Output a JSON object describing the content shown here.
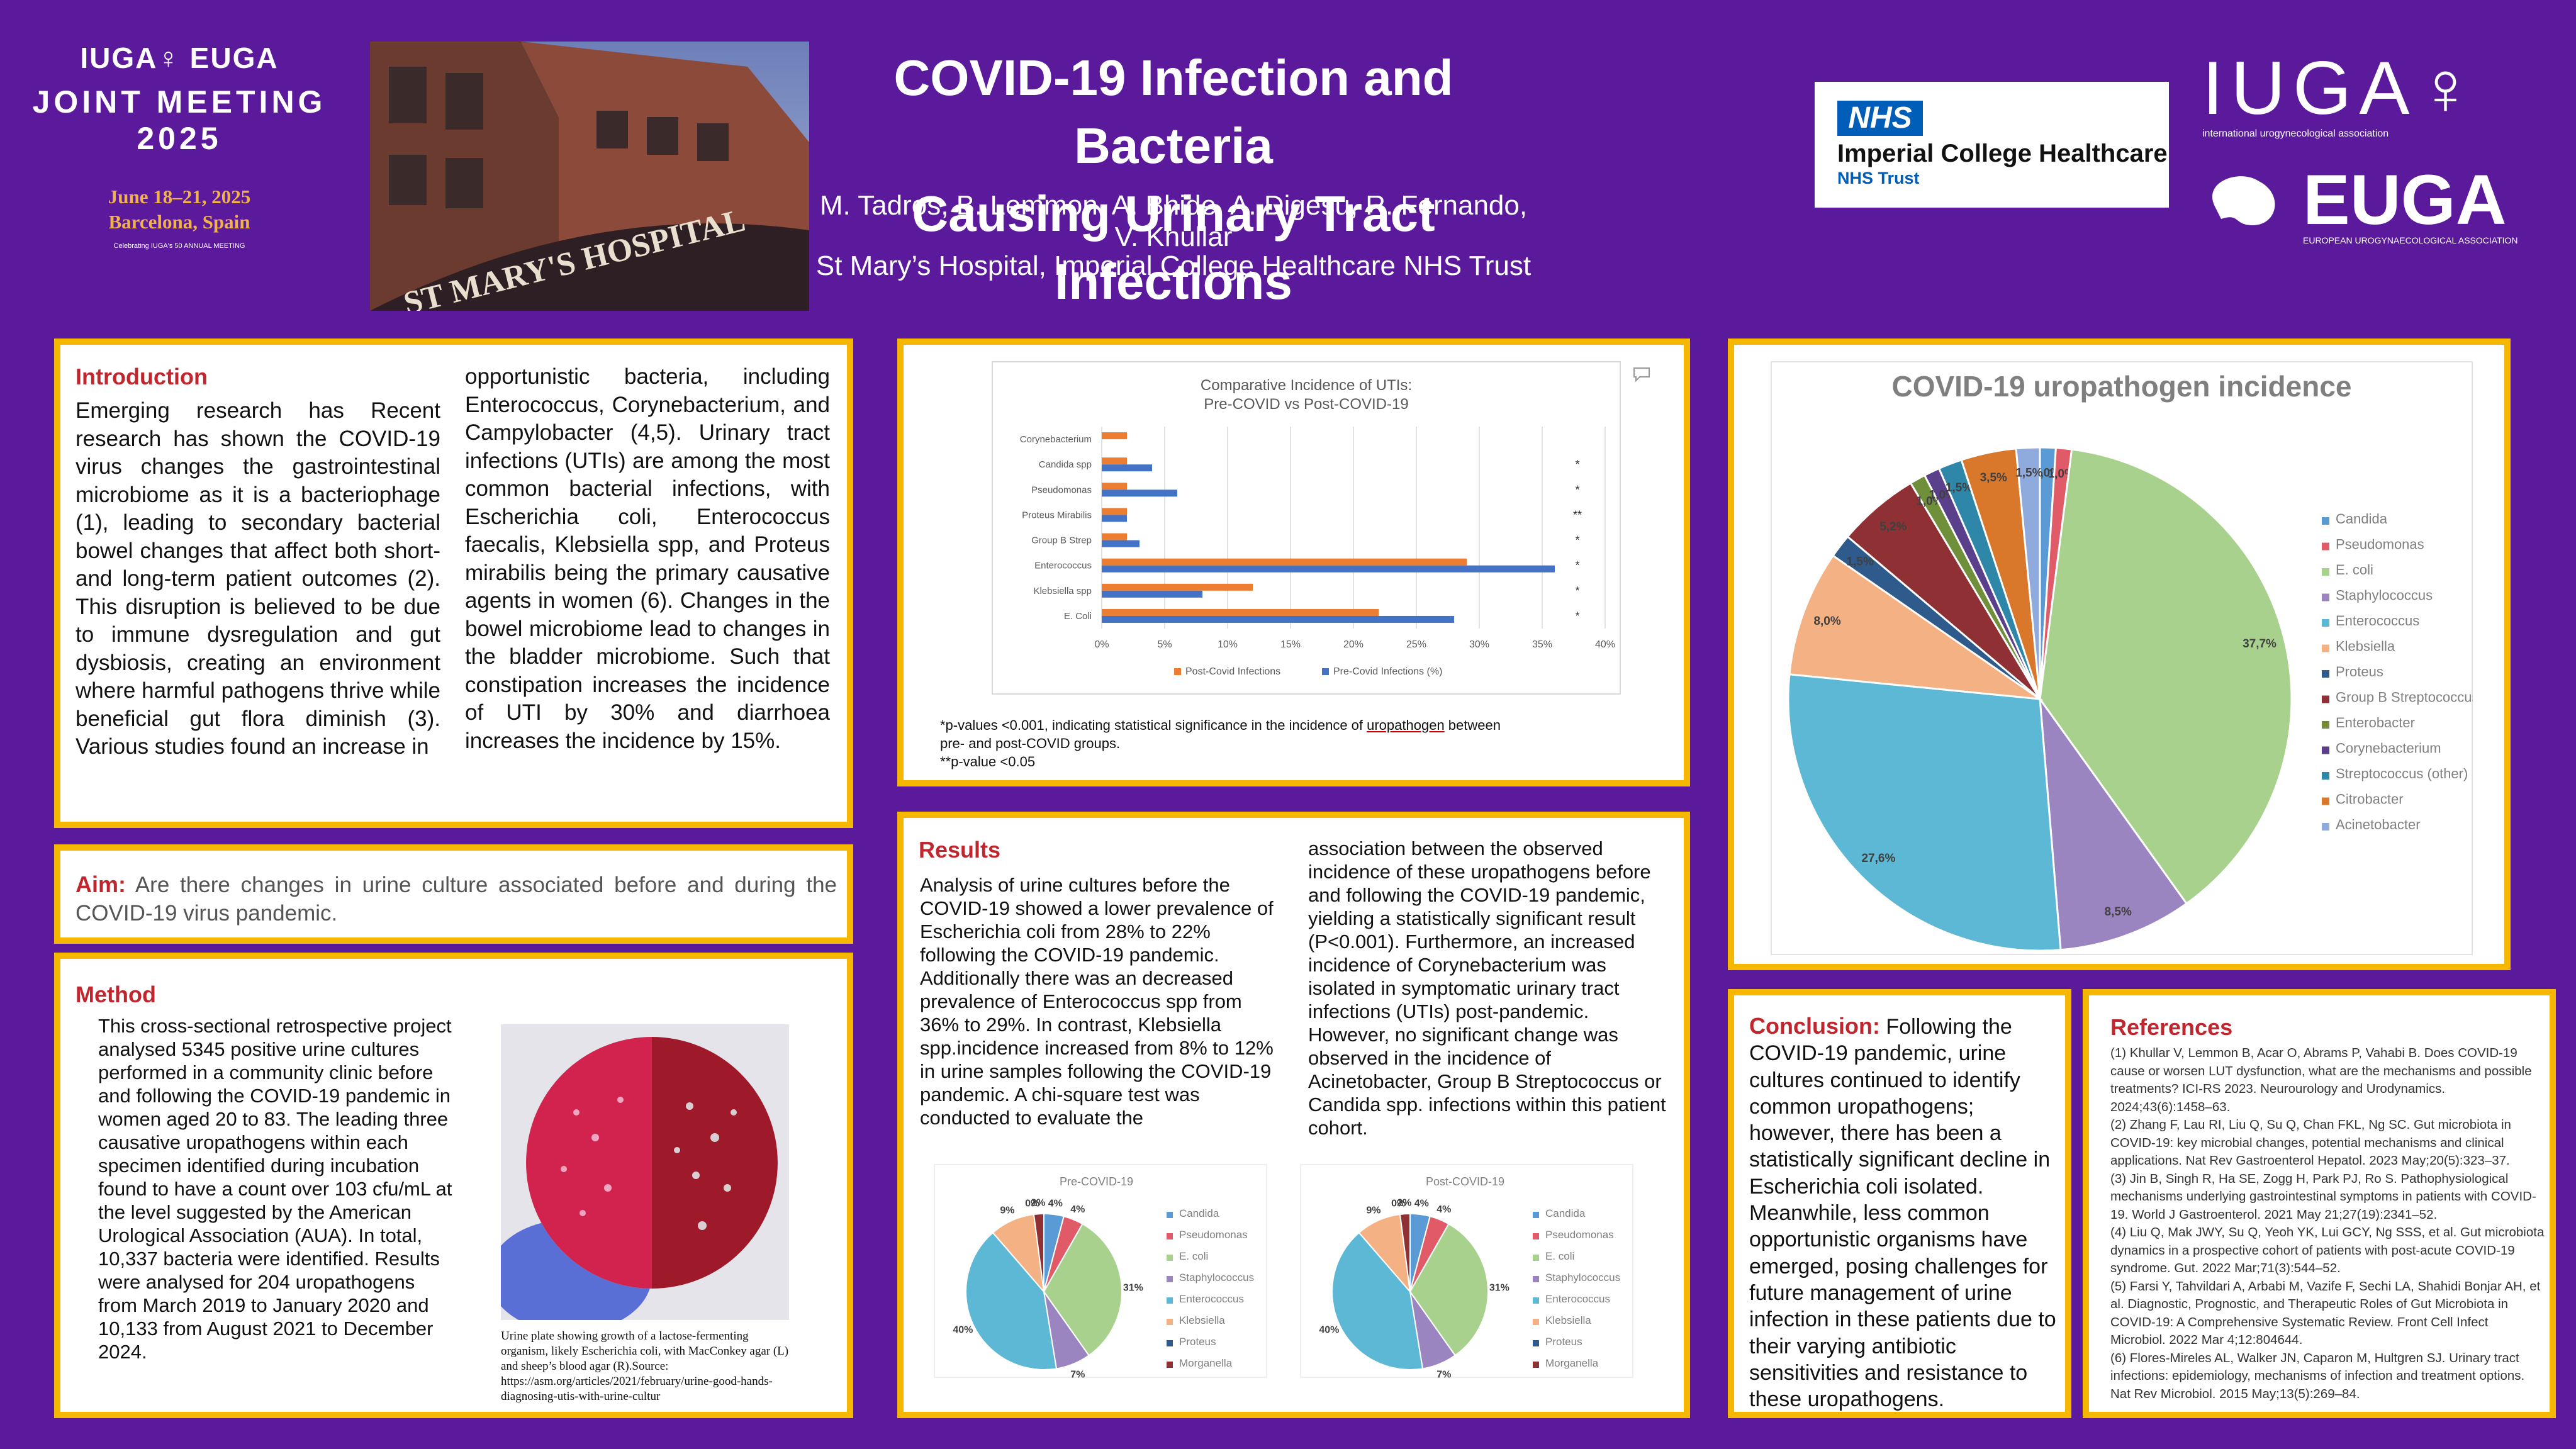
{
  "header": {
    "meeting_logo_line1": "IUGA♀ EUGA",
    "meeting_logo_line2": "JOINT MEETING",
    "meeting_logo_line3": "2025",
    "meeting_dates": "June 18–21, 2025",
    "meeting_location": "Barcelona, Spain",
    "meeting_anniversary": "Celebrating IUGA's 50 ANNUAL MEETING",
    "photo_sign_text": "ST MARY'S HOSPITAL",
    "title_line1": "COVID-19 Infection and Bacteria",
    "title_line2": "Causing Urinary Tract Infections",
    "authors": "M. Tadros, B. Lemmon, A. Bhide, A. Digesu, R. Fernando, V. Khullar",
    "affiliation": "St Mary’s Hospital, Imperial College Healthcare NHS Trust",
    "nhs_badge": "NHS",
    "nhs_name": "Imperial College Healthcare",
    "nhs_trust": "NHS Trust",
    "iuga_logo": "IUGA♀",
    "iuga_sub": "international urogynecological association",
    "euga_logo": "EUGA",
    "euga_sub": "EUROPEAN UROGYNAECOLOGICAL ASSOCIATION"
  },
  "introduction": {
    "title": "Introduction",
    "col1": "Emerging research has Recent research has shown the COVID-19 virus changes the gastrointestinal microbiome as it is a bacteriophage (1), leading to secondary bacterial bowel changes that affect both short- and long-term patient outcomes (2). This disruption is believed to be due to immune dysregulation and gut dysbiosis, creating an environment where harmful pathogens thrive while beneficial gut flora diminish (3). Various studies found an increase in",
    "col2": "opportunistic bacteria, including Enterococcus, Corynebacterium, and Campylobacter (4,5). Urinary tract infections (UTIs) are among the most common bacterial infections, with Escherichia coli, Enterococcus faecalis, Klebsiella spp, and Proteus mirabilis being the primary causative agents in women (6). Changes in the bowel microbiome lead to changes in the bladder microbiome. Such that constipation increases the incidence of UTI by 30% and diarrhoea increases the incidence by 15%."
  },
  "aim": {
    "title": "Aim:",
    "text": "Are there changes in urine culture associated before and during the COVID-19 virus pandemic."
  },
  "method": {
    "title": "Method",
    "text": "This cross-sectional retrospective project analysed 5345 positive urine cultures performed in a community clinic before and following the COVID-19 pandemic in women aged 20 to 83. The leading three causative uropathogens within each specimen identified during incubation found to have a count over 103 cfu/mL at the level suggested by the American Urological Association (AUA). In total, 10,337 bacteria were identified. Results were analysed for 204 uropathogens from March 2019 to January 2020 and 10,133 from August 2021 to December 2024.",
    "caption": "Urine plate showing growth of a lactose-fermenting organism, likely Escherichia coli, with MacConkey agar (L) and sheep’s blood agar (R).Source: https://asm.org/articles/2021/february/urine-good-hands-diagnosing-utis-with-urine-cultur"
  },
  "results": {
    "title": "Results",
    "col1": "Analysis of urine cultures before the COVID-19 showed a lower prevalence of Escherichia coli from 28% to 22% following the COVID-19 pandemic. Additionally there was an decreased prevalence of Enterococcus spp from 36% to 29%. In contrast, Klebsiella spp.incidence increased from 8% to 12% in urine samples following the COVID-19 pandemic. A chi-square test was conducted to evaluate the",
    "col2": " association between the observed incidence of these uropathogens before and following the COVID-19 pandemic, yielding a statistically significant result (P<0.001). Furthermore, an increased incidence of Corynebacterium was isolated in symptomatic urinary tract infections (UTIs) post-pandemic. However, no significant change was observed in the incidence of Acinetobacter, Group B Streptococcus or Candida spp. infections within this patient cohort."
  },
  "notes": {
    "line1_prefix": "*p-values <0.001, indicating statistical significance in the incidence of ",
    "line1_link": "uropathogen",
    "line1_suffix": " between",
    "line2": "pre- and post-COVID groups.",
    "line3": "**p-value <0.05"
  },
  "conclusion": {
    "title": "Conclusion:",
    "text": " Following the COVID-19 pandemic, urine cultures continued to identify common uropathogens; however, there has been a statistically significant decline in Escherichia coli isolated. Meanwhile, less common opportunistic organisms have emerged, posing challenges for future management of urine infection in these patients due to their varying antibiotic sensitivities and resistance to these uropathogens."
  },
  "references": {
    "title": "References",
    "items": [
      "(1) Khullar V, Lemmon B, Acar O, Abrams P, Vahabi B. Does COVID-19 cause or worsen LUT dysfunction, what are the mechanisms and possible treatments? ICI-RS 2023. Neurourology and Urodynamics. 2024;43(6):1458–63.",
      "(2) Zhang F, Lau RI, Liu Q, Su Q, Chan FKL, Ng SC. Gut microbiota in COVID-19: key microbial changes, potential mechanisms and clinical applications. Nat Rev Gastroenterol Hepatol. 2023 May;20(5):323–37.",
      "(3) Jin B, Singh R, Ha SE, Zogg H, Park PJ, Ro S. Pathophysiological mechanisms underlying gastrointestinal symptoms in patients with COVID-19. World J Gastroenterol. 2021 May 21;27(19):2341–52.",
      "(4) Liu Q, Mak JWY, Su Q, Yeoh YK, Lui GCY, Ng SSS, et al. Gut microbiota dynamics in a prospective cohort of patients with post-acute COVID-19 syndrome. Gut. 2022 Mar;71(3):544–52.",
      "(5) Farsi Y, Tahvildari A, Arbabi M, Vazife F, Sechi LA, Shahidi Bonjar AH, et al. Diagnostic, Prognostic, and Therapeutic Roles of Gut Microbiota in COVID-19: A Comprehensive Systematic Review. Front Cell Infect Microbiol. 2022 Mar 4;12:804644.",
      "(6) Flores-Mireles AL, Walker JN, Caparon M, Hultgren SJ. Urinary tract infections: epidemiology, mechanisms of infection and treatment options. Nat Rev Microbiol. 2015 May;13(5):269–84."
    ]
  },
  "chart_data": [
    {
      "type": "bar",
      "orientation": "horizontal",
      "title": "Comparative Incidence of UTIs: Pre-COVID vs Post-COVID-19",
      "categories": [
        "Corynebacterium",
        "Candida spp",
        "Pseudomonas",
        "Proteus Mirabilis",
        "Group B Strep",
        "Enterococcus",
        "Klebsiella spp",
        "E. Coli"
      ],
      "series": [
        {
          "name": "Post-Covid Infections",
          "color": "#ed7d31",
          "values": [
            2,
            2,
            2,
            2,
            2,
            29,
            12,
            22
          ]
        },
        {
          "name": "Pre-Covid Infections (%)",
          "color": "#4472c4",
          "values": [
            0,
            4,
            6,
            2,
            3,
            36,
            8,
            28
          ]
        }
      ],
      "significance": [
        "",
        "*",
        "*",
        "**",
        "*",
        "*",
        "*",
        "*"
      ],
      "xticks": [
        "0%",
        "5%",
        "10%",
        "15%",
        "20%",
        "25%",
        "30%",
        "35%",
        "40%"
      ],
      "xlim": [
        0,
        40
      ],
      "legend": "bottom",
      "grid": true
    },
    {
      "type": "pie",
      "title": "COVID-19 uropathogen incidence",
      "labels": [
        "Candida",
        "Pseudomonas",
        "E. coli",
        "Staphylococcus",
        "Enterococcus",
        "Klebsiella",
        "Proteus",
        "Group B Streptococcus",
        "Enterobacter",
        "Corynebacterium",
        "Streptococcus (other)",
        "Citrobacter",
        "Acinetobacter"
      ],
      "values": [
        1.0,
        1.0,
        37.7,
        8.5,
        27.6,
        8.0,
        1.5,
        5.2,
        1.0,
        1.0,
        1.5,
        3.5,
        1.5
      ],
      "data_labels": [
        "1,0%",
        "1,0%",
        "37,7%",
        "8,5%",
        "27,6%",
        "8,0%",
        "1,5%",
        "5,2%",
        "1,0%",
        "1,0%",
        "1,5%",
        "3,5%",
        "1,5%"
      ],
      "colors": [
        "#5b9bd5",
        "#e05a67",
        "#a9d18e",
        "#9b85c1",
        "#5cb8d4",
        "#f4b183",
        "#2e5a8c",
        "#8e3034",
        "#6f8f3a",
        "#5a3f8a",
        "#2e86a8",
        "#d9772b",
        "#8faadc"
      ],
      "legend": "right"
    },
    {
      "type": "pie",
      "title": "Pre-COVID-19",
      "labels": [
        "Candida",
        "Pseudomonas",
        "E. coli",
        "Staphylococcus",
        "Enterococcus",
        "Klebsiella",
        "Proteus",
        "Morganella"
      ],
      "values": [
        4,
        4,
        31,
        7,
        40,
        9,
        0,
        2
      ],
      "data_labels": [
        "4%",
        "4%",
        "31%",
        "7%",
        "40%",
        "9%",
        "0%",
        "2%"
      ],
      "colors": [
        "#5b9bd5",
        "#e05a67",
        "#a9d18e",
        "#9b85c1",
        "#5cb8d4",
        "#f4b183",
        "#2e5a8c",
        "#8e3034"
      ],
      "legend": "right"
    },
    {
      "type": "pie",
      "title": "Post-COVID-19",
      "labels": [
        "Candida",
        "Pseudomonas",
        "E. coli",
        "Staphylococcus",
        "Enterococcus",
        "Klebsiella",
        "Proteus",
        "Morganella"
      ],
      "values": [
        4,
        4,
        31,
        7,
        40,
        9,
        0,
        2
      ],
      "data_labels": [
        "4%",
        "4%",
        "31%",
        "7%",
        "40%",
        "9%",
        "0%",
        "2%"
      ],
      "colors": [
        "#5b9bd5",
        "#e05a67",
        "#a9d18e",
        "#9b85c1",
        "#5cb8d4",
        "#f4b183",
        "#2e5a8c",
        "#8e3034"
      ],
      "legend": "right"
    }
  ]
}
